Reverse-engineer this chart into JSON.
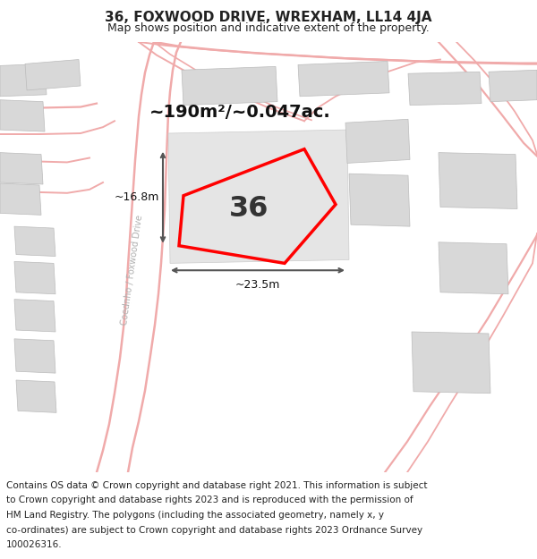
{
  "title": "36, FOXWOOD DRIVE, WREXHAM, LL14 4JA",
  "subtitle": "Map shows position and indicative extent of the property.",
  "area_label": "~190m²/~0.047ac.",
  "number_label": "36",
  "width_label": "~23.5m",
  "height_label": "~16.8m",
  "road_label": "Coednho / Foxwood Drive",
  "footer_lines": [
    "Contains OS data © Crown copyright and database right 2021. This information is subject",
    "to Crown copyright and database rights 2023 and is reproduced with the permission of",
    "HM Land Registry. The polygons (including the associated geometry, namely x, y",
    "co-ordinates) are subject to Crown copyright and database rights 2023 Ordnance Survey",
    "100026316."
  ],
  "bg_color": "#ffffff",
  "map_bg": "#f5f5f5",
  "building_color": "#d8d8d8",
  "road_line_color": "#f0aaaa",
  "property_color": "#ff0000",
  "dim_line_color": "#555555",
  "title_fontsize": 11,
  "subtitle_fontsize": 9,
  "footer_fontsize": 7.5
}
